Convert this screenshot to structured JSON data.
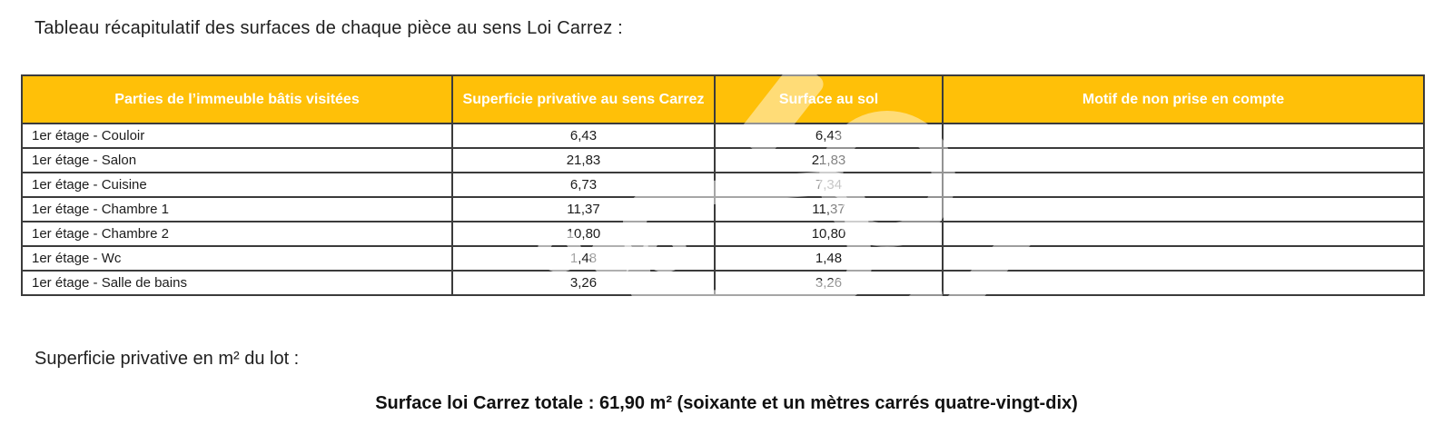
{
  "document": {
    "intro_text": "Tableau récapitulatif des surfaces de chaque pièce au sens Loi Carrez :",
    "lot_label": "Superficie privative en m² du lot :",
    "total_text": "Surface loi Carrez totale : 61,90 m² (soixante et un mètres carrés quatre-vingt-dix)"
  },
  "table": {
    "headers": [
      "Parties de l’immeuble bâtis visitées",
      "Superficie privative au sens Carrez",
      "Surface au sol",
      "Motif de non prise en compte"
    ],
    "rows": [
      {
        "room": "1er étage - Couloir",
        "carrez": "6,43",
        "floor": "6,43",
        "motif": ""
      },
      {
        "room": "1er étage - Salon",
        "carrez": "21,83",
        "floor": "21,83",
        "motif": ""
      },
      {
        "room": "1er étage - Cuisine",
        "carrez": "6,73",
        "floor": "7,34",
        "motif": ""
      },
      {
        "room": "1er étage - Chambre 1",
        "carrez": "11,37",
        "floor": "11,37",
        "motif": ""
      },
      {
        "room": "1er étage - Chambre 2",
        "carrez": "10,80",
        "floor": "10,80",
        "motif": ""
      },
      {
        "room": "1er étage - Wc",
        "carrez": "1,48",
        "floor": "1,48",
        "motif": ""
      },
      {
        "room": "1er étage - Salle de bains",
        "carrez": "3,26",
        "floor": "3,26",
        "motif": ""
      }
    ]
  },
  "colors": {
    "header_bg": "#FFC008",
    "header_text": "#FFFFFF",
    "grid_border": "#3B3B3B",
    "body_text": "#1C1C1C"
  }
}
